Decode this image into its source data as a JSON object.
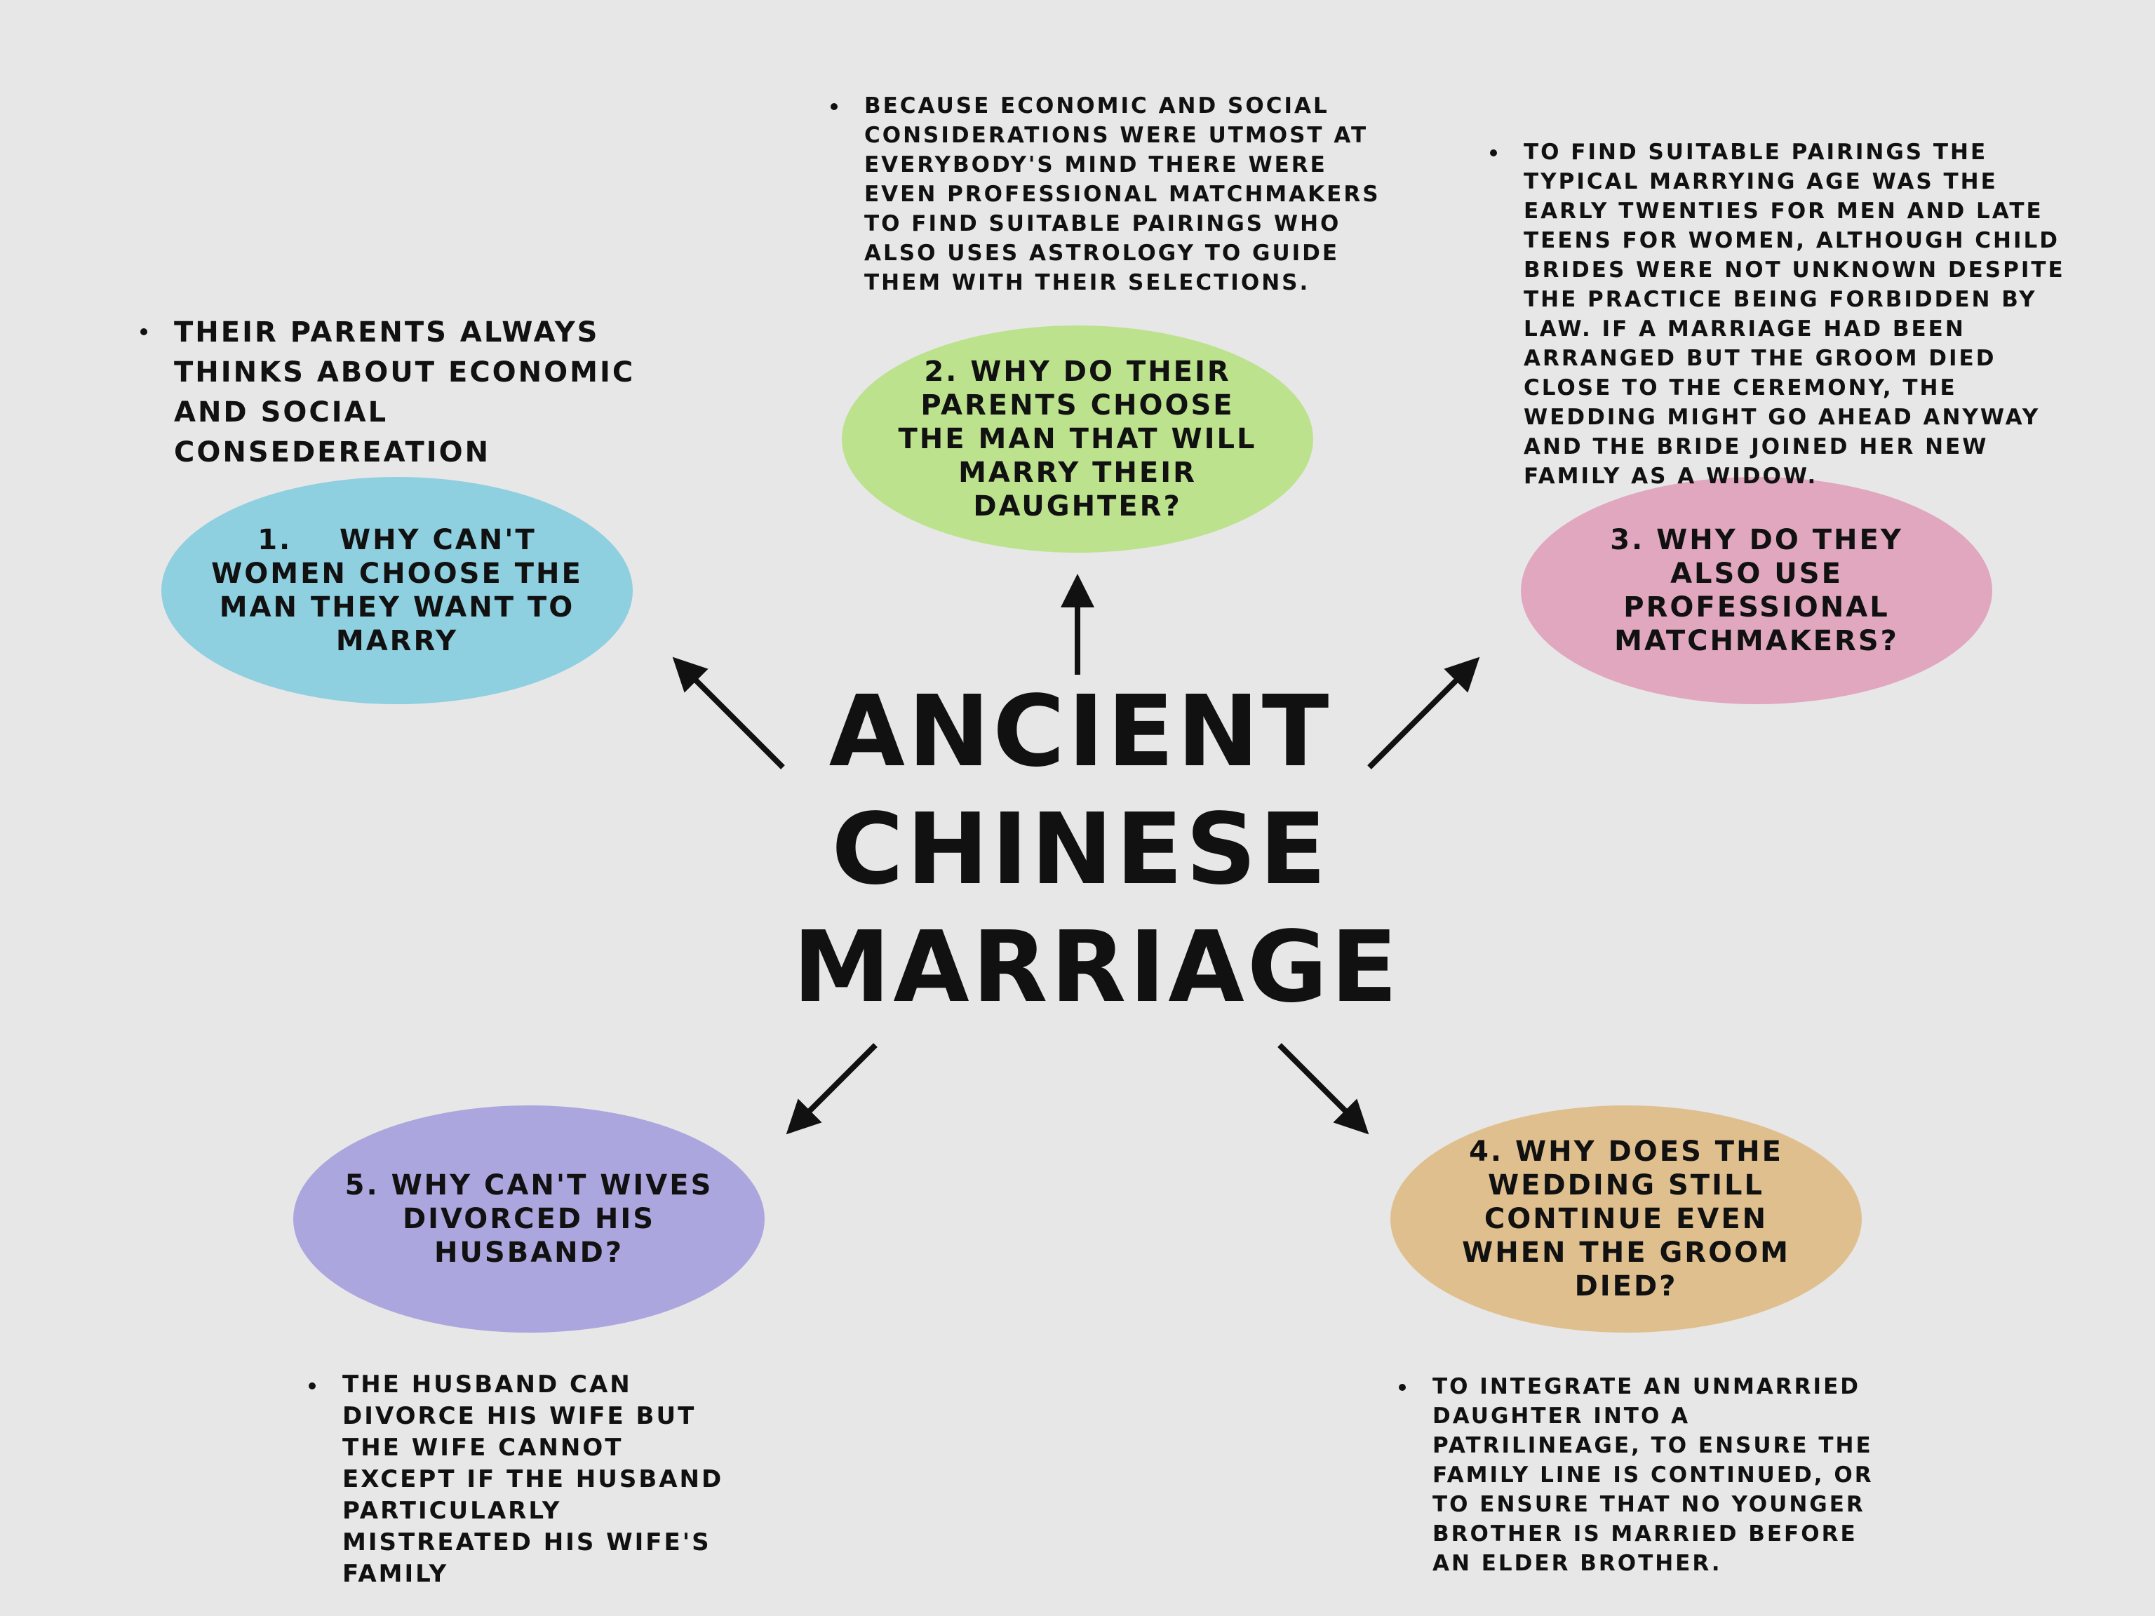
{
  "title": "Ancient Chinese Marriage",
  "colors": {
    "background": "#e8e7e7",
    "bubble_1": "#8ecfe0",
    "bubble_2": "#bce28e",
    "bubble_3": "#e0a7bf",
    "bubble_4": "#e0bf8e",
    "bubble_5": "#aca6de"
  },
  "questions": [
    {
      "label": "1.    Why can't women choose the man they want to marry"
    },
    {
      "label": "2. Why do their parents choose the man that will marry their daughter?"
    },
    {
      "label": "3. Why do they also use professional matchmakers?"
    },
    {
      "label": "4. Why does the wedding still continue even when the groom died?"
    },
    {
      "label": "5. Why can't wives divorced his husband?"
    }
  ],
  "answers": [
    {
      "text": "Their parents always thinks about economic and social consedereation"
    },
    {
      "text": "Because economic and social considerations were utmost at everybody's mind there were even professional matchmakers to find suitable pairings who also uses astrology to guide them with their selections."
    },
    {
      "text": "To find suitable pairings the typical marrying age was the early twenties for men and late teens for women, although child brides were not unknown despite the practice being forbidden by law. If a marriage had been arranged but the groom died close to the ceremony, the wedding might go ahead anyway and the bride joined her new family as a widow."
    },
    {
      "text": "To integrate an unmarried daughter into a patrilineage, to ensure the family line is continued, or to ensure that no younger brother is married before an elder brother."
    },
    {
      "text": "The husband can divorce his wife but the wife cannot except if the husband particularly mistreated his wife's family"
    }
  ]
}
